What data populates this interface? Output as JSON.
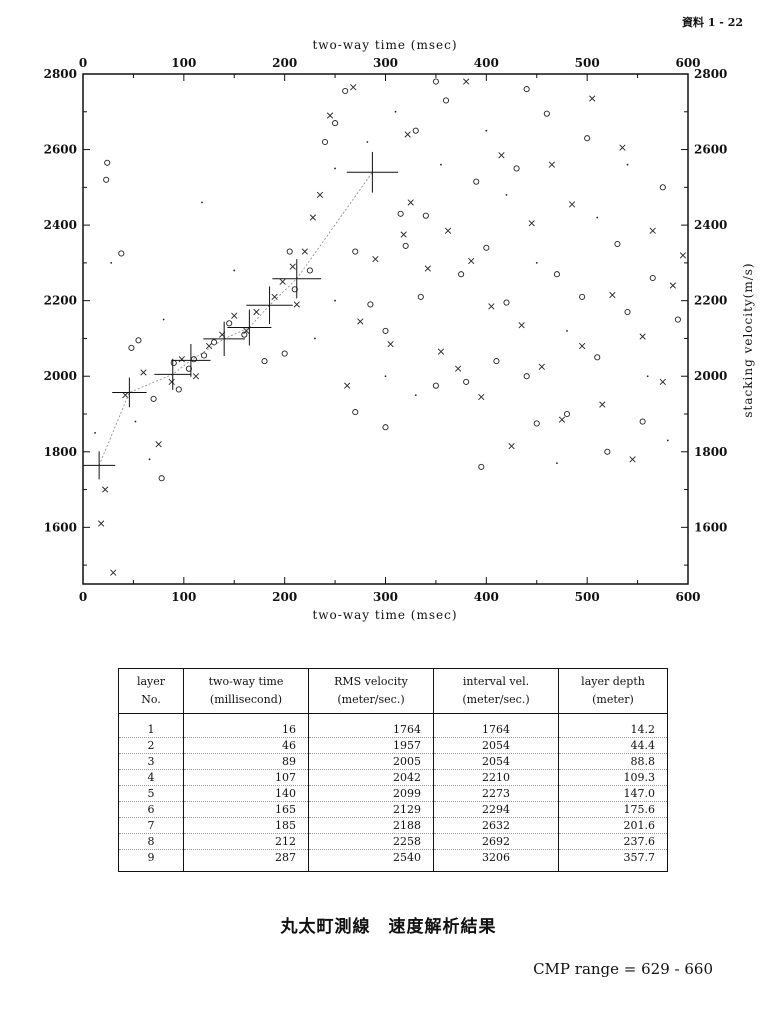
{
  "page_label": "資料 1 - 22",
  "title": "丸太町測線　速度解析結果",
  "cmp_range": "CMP range = 629 - 660",
  "chart_data": {
    "type": "scatter",
    "xlabel_top": "two-way time (msec)",
    "xlabel_bottom": "two-way time (msec)",
    "ylabel_right": "stacking velocity(m/s)",
    "xlim": [
      0,
      600
    ],
    "ylim": [
      1450,
      2800
    ],
    "x_ticks": [
      0,
      100,
      200,
      300,
      400,
      500,
      600
    ],
    "y_ticks_left": [
      1600,
      1800,
      2000,
      2200,
      2400,
      2600,
      2800
    ],
    "y_ticks_right": [
      1600,
      1800,
      2000,
      2200,
      2400,
      2600,
      2800
    ],
    "picks": {
      "x": [
        16,
        46,
        89,
        107,
        140,
        165,
        185,
        212,
        287
      ],
      "y": [
        1764,
        1957,
        2005,
        2042,
        2099,
        2129,
        2188,
        2258,
        2540
      ]
    },
    "series": [
      {
        "marker": "circle",
        "points": [
          [
            24,
            2565
          ],
          [
            23,
            2520
          ],
          [
            38,
            2325
          ],
          [
            48,
            2075
          ],
          [
            55,
            2095
          ],
          [
            70,
            1940
          ],
          [
            78,
            1730
          ],
          [
            90,
            2035
          ],
          [
            95,
            1965
          ],
          [
            105,
            2020
          ],
          [
            110,
            2045
          ],
          [
            120,
            2055
          ],
          [
            130,
            2090
          ],
          [
            145,
            2140
          ],
          [
            160,
            2110
          ],
          [
            180,
            2040
          ],
          [
            200,
            2060
          ],
          [
            205,
            2330
          ],
          [
            210,
            2230
          ],
          [
            225,
            2280
          ],
          [
            240,
            2620
          ],
          [
            250,
            2670
          ],
          [
            260,
            2755
          ],
          [
            270,
            2330
          ],
          [
            285,
            2190
          ],
          [
            300,
            2120
          ],
          [
            315,
            2430
          ],
          [
            320,
            2345
          ],
          [
            330,
            2650
          ],
          [
            335,
            2210
          ],
          [
            340,
            2425
          ],
          [
            350,
            1975
          ],
          [
            360,
            2730
          ],
          [
            375,
            2270
          ],
          [
            380,
            1985
          ],
          [
            390,
            2515
          ],
          [
            395,
            1760
          ],
          [
            400,
            2340
          ],
          [
            410,
            2040
          ],
          [
            420,
            2195
          ],
          [
            430,
            2550
          ],
          [
            440,
            2000
          ],
          [
            450,
            1875
          ],
          [
            460,
            2695
          ],
          [
            470,
            2270
          ],
          [
            480,
            1900
          ],
          [
            495,
            2210
          ],
          [
            500,
            2630
          ],
          [
            510,
            2050
          ],
          [
            520,
            1800
          ],
          [
            530,
            2350
          ],
          [
            540,
            2170
          ],
          [
            555,
            1880
          ],
          [
            565,
            2260
          ],
          [
            575,
            2500
          ],
          [
            590,
            2150
          ],
          [
            350,
            2780
          ],
          [
            440,
            2760
          ],
          [
            270,
            1905
          ],
          [
            300,
            1865
          ]
        ]
      },
      {
        "marker": "cross",
        "points": [
          [
            18,
            1610
          ],
          [
            22,
            1700
          ],
          [
            30,
            1480
          ],
          [
            42,
            1950
          ],
          [
            60,
            2010
          ],
          [
            75,
            1820
          ],
          [
            88,
            1985
          ],
          [
            98,
            2045
          ],
          [
            112,
            2000
          ],
          [
            125,
            2080
          ],
          [
            138,
            2110
          ],
          [
            150,
            2160
          ],
          [
            162,
            2120
          ],
          [
            172,
            2170
          ],
          [
            190,
            2210
          ],
          [
            198,
            2250
          ],
          [
            208,
            2290
          ],
          [
            212,
            2190
          ],
          [
            220,
            2330
          ],
          [
            228,
            2420
          ],
          [
            235,
            2480
          ],
          [
            245,
            2690
          ],
          [
            262,
            1975
          ],
          [
            275,
            2145
          ],
          [
            290,
            2310
          ],
          [
            305,
            2085
          ],
          [
            318,
            2375
          ],
          [
            325,
            2460
          ],
          [
            342,
            2285
          ],
          [
            355,
            2065
          ],
          [
            362,
            2385
          ],
          [
            372,
            2020
          ],
          [
            385,
            2305
          ],
          [
            395,
            1945
          ],
          [
            405,
            2185
          ],
          [
            415,
            2585
          ],
          [
            425,
            1815
          ],
          [
            435,
            2135
          ],
          [
            445,
            2405
          ],
          [
            455,
            2025
          ],
          [
            465,
            2560
          ],
          [
            475,
            1885
          ],
          [
            485,
            2455
          ],
          [
            495,
            2080
          ],
          [
            505,
            2735
          ],
          [
            515,
            1925
          ],
          [
            525,
            2215
          ],
          [
            535,
            2605
          ],
          [
            545,
            1780
          ],
          [
            555,
            2105
          ],
          [
            565,
            2385
          ],
          [
            575,
            1985
          ],
          [
            585,
            2240
          ],
          [
            595,
            2320
          ],
          [
            268,
            2765
          ],
          [
            380,
            2780
          ],
          [
            322,
            2640
          ]
        ]
      },
      {
        "marker": "dot",
        "points": [
          [
            12,
            1850
          ],
          [
            28,
            2300
          ],
          [
            52,
            1880
          ],
          [
            66,
            1780
          ],
          [
            80,
            2150
          ],
          [
            118,
            2460
          ],
          [
            150,
            2280
          ],
          [
            230,
            2100
          ],
          [
            250,
            2200
          ],
          [
            282,
            2620
          ],
          [
            310,
            2700
          ],
          [
            330,
            1950
          ],
          [
            355,
            2560
          ],
          [
            400,
            2650
          ],
          [
            420,
            2480
          ],
          [
            450,
            2300
          ],
          [
            480,
            2120
          ],
          [
            510,
            2420
          ],
          [
            540,
            2560
          ],
          [
            560,
            2000
          ],
          [
            580,
            1830
          ],
          [
            470,
            1770
          ],
          [
            300,
            2000
          ],
          [
            250,
            2550
          ]
        ]
      }
    ]
  },
  "table": {
    "headers": [
      {
        "line1": "layer",
        "line2": "No."
      },
      {
        "line1": "two-way time",
        "line2": "(millisecond)"
      },
      {
        "line1": "RMS velocity",
        "line2": "(meter/sec.)"
      },
      {
        "line1": "interval vel.",
        "line2": "(meter/sec.)"
      },
      {
        "line1": "layer depth",
        "line2": "(meter)"
      }
    ],
    "rows": [
      [
        "1",
        "16",
        "1764",
        "1764",
        "14.2"
      ],
      [
        "2",
        "46",
        "1957",
        "2054",
        "44.4"
      ],
      [
        "3",
        "89",
        "2005",
        "2054",
        "88.8"
      ],
      [
        "4",
        "107",
        "2042",
        "2210",
        "109.3"
      ],
      [
        "5",
        "140",
        "2099",
        "2273",
        "147.0"
      ],
      [
        "6",
        "165",
        "2129",
        "2294",
        "175.6"
      ],
      [
        "7",
        "185",
        "2188",
        "2632",
        "201.6"
      ],
      [
        "8",
        "212",
        "2258",
        "2692",
        "237.6"
      ],
      [
        "9",
        "287",
        "2540",
        "3206",
        "357.7"
      ]
    ]
  }
}
